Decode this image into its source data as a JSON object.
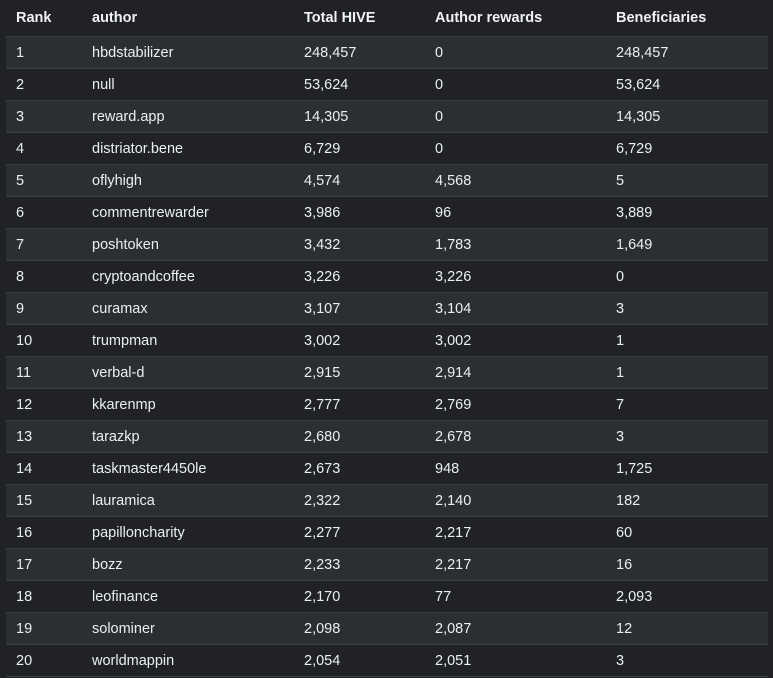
{
  "table": {
    "headers": [
      "Rank",
      "author",
      "Total HIVE",
      "Author rewards",
      "Beneficiaries"
    ],
    "rows": [
      [
        "1",
        "hbdstabilizer",
        "248,457",
        "0",
        "248,457"
      ],
      [
        "2",
        "null",
        "53,624",
        "0",
        "53,624"
      ],
      [
        "3",
        "reward.app",
        "14,305",
        "0",
        "14,305"
      ],
      [
        "4",
        "distriator.bene",
        "6,729",
        "0",
        "6,729"
      ],
      [
        "5",
        "oflyhigh",
        "4,574",
        "4,568",
        "5"
      ],
      [
        "6",
        "commentrewarder",
        "3,986",
        "96",
        "3,889"
      ],
      [
        "7",
        "poshtoken",
        "3,432",
        "1,783",
        "1,649"
      ],
      [
        "8",
        "cryptoandcoffee",
        "3,226",
        "3,226",
        "0"
      ],
      [
        "9",
        "curamax",
        "3,107",
        "3,104",
        "3"
      ],
      [
        "10",
        "trumpman",
        "3,002",
        "3,002",
        "1"
      ],
      [
        "11",
        "verbal-d",
        "2,915",
        "2,914",
        "1"
      ],
      [
        "12",
        "kkarenmp",
        "2,777",
        "2,769",
        "7"
      ],
      [
        "13",
        "tarazkp",
        "2,680",
        "2,678",
        "3"
      ],
      [
        "14",
        "taskmaster4450le",
        "2,673",
        "948",
        "1,725"
      ],
      [
        "15",
        "lauramica",
        "2,322",
        "2,140",
        "182"
      ],
      [
        "16",
        "papilloncharity",
        "2,277",
        "2,217",
        "60"
      ],
      [
        "17",
        "bozz",
        "2,233",
        "2,217",
        "16"
      ],
      [
        "18",
        "leofinance",
        "2,170",
        "77",
        "2,093"
      ],
      [
        "19",
        "solominer",
        "2,098",
        "2,087",
        "12"
      ],
      [
        "20",
        "worldmappin",
        "2,054",
        "2,051",
        "3"
      ]
    ]
  }
}
